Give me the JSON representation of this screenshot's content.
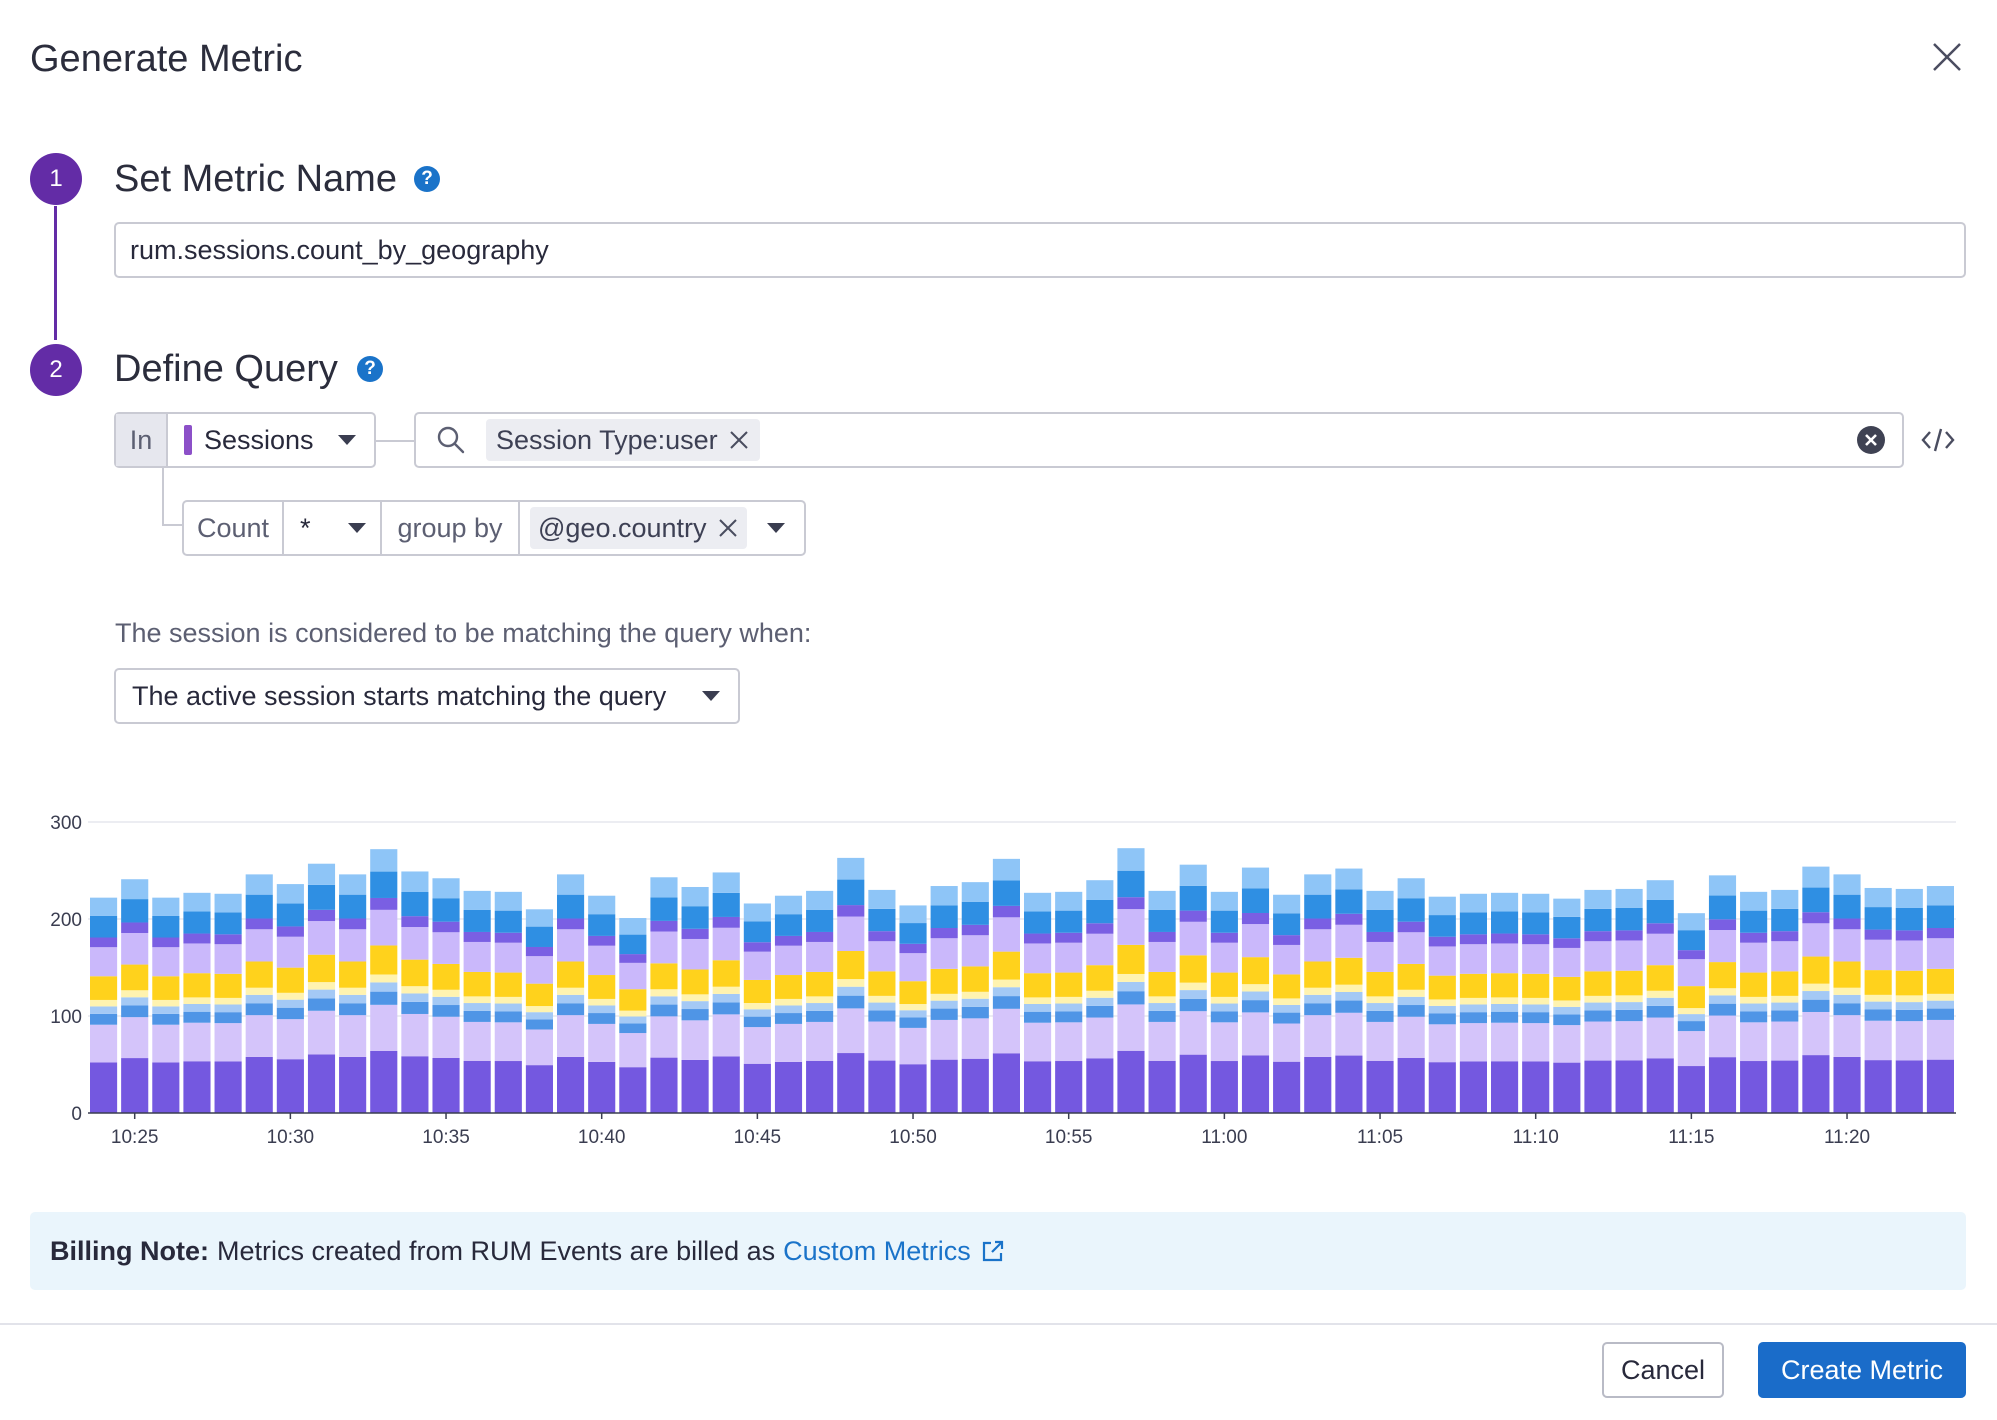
{
  "modal": {
    "title": "Generate Metric"
  },
  "steps": [
    {
      "number": "1",
      "title": "Set Metric Name"
    },
    {
      "number": "2",
      "title": "Define Query"
    }
  ],
  "metric_name": {
    "value": "rum.sessions.count_by_geography"
  },
  "query": {
    "in_label": "In",
    "source": "Sessions",
    "filter_chip": "Session Type:user",
    "aggregation": "Count",
    "measure": "*",
    "group_by_label": "group by",
    "group_by_chip": "@geo.country"
  },
  "matching": {
    "label": "The session is considered to be matching the query when:",
    "selected": "The active session starts matching the query"
  },
  "chart_data": {
    "type": "bar",
    "stacked": true,
    "ylim": [
      0,
      300
    ],
    "yticks": [
      "0",
      "100",
      "200",
      "300"
    ],
    "xticks": [
      "10:25",
      "10:30",
      "10:35",
      "10:40",
      "10:45",
      "10:50",
      "10:55",
      "11:00",
      "11:05",
      "11:10",
      "11:15",
      "11:20"
    ],
    "totals": [
      222,
      241,
      222,
      227,
      226,
      246,
      236,
      257,
      246,
      272,
      249,
      242,
      229,
      228,
      210,
      246,
      224,
      201,
      243,
      233,
      248,
      216,
      224,
      229,
      263,
      230,
      214,
      234,
      238,
      262,
      227,
      228,
      240,
      273,
      229,
      256,
      228,
      253,
      225,
      246,
      252,
      229,
      242,
      223,
      226,
      227,
      226,
      221,
      230,
      231,
      240,
      206,
      245,
      228,
      230,
      254,
      246,
      232,
      231,
      234
    ],
    "series_colors": [
      "#7458e0",
      "#d4c4fa",
      "#4f95e6",
      "#a4c9f5",
      "#fff3b0",
      "#ffd21c",
      "#cab8fb",
      "#7a5fe3",
      "#2f8fe3",
      "#8ec5f7"
    ],
    "series_shares": [
      0.235,
      0.175,
      0.05,
      0.035,
      0.03,
      0.11,
      0.135,
      0.045,
      0.1,
      0.085
    ],
    "grid": true
  },
  "billing": {
    "label": "Billing Note:",
    "text": "Metrics created from RUM Events are billed as",
    "link": "Custom Metrics"
  },
  "footer": {
    "cancel": "Cancel",
    "create": "Create Metric"
  }
}
